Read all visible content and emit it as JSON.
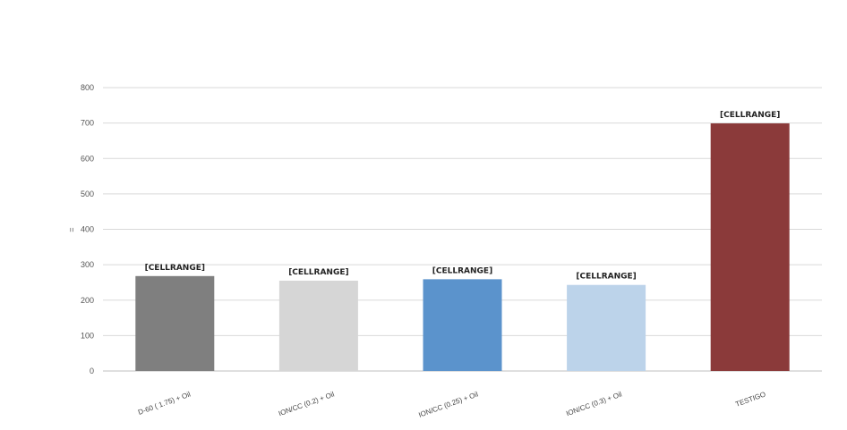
{
  "chart_data": {
    "type": "bar",
    "title": "",
    "xlabel": "",
    "ylabel": "=",
    "ylim": [
      0,
      800
    ],
    "yticks": [
      0,
      100,
      200,
      300,
      400,
      500,
      600,
      700,
      800
    ],
    "grid": true,
    "legend": "none",
    "categories": [
      "D-60 ( 1.75) + Oil",
      "ION/CC (0.2) + Oil",
      "ION/CC (0.25) + Oil",
      "ION/CC (0.3) + Oil",
      "TESTIGO"
    ],
    "values": [
      268,
      255,
      259,
      243,
      699
    ],
    "data_labels": [
      "[CELLRANGE]",
      "[CELLRANGE]",
      "[CELLRANGE]",
      "[CELLRANGE]",
      "[CELLRANGE]"
    ],
    "colors": [
      "#7f7f7f",
      "#d6d6d6",
      "#5b93cc",
      "#bcd3ea",
      "#8b3a3a"
    ]
  }
}
